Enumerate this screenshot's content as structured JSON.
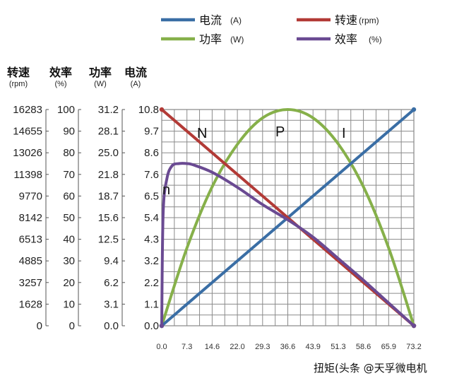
{
  "chart_data": {
    "type": "line",
    "title": "",
    "xlabel": "",
    "x_ticks": [
      "0.0",
      "7.3",
      "14.6",
      "22.0",
      "29.3",
      "36.6",
      "43.9",
      "51.3",
      "58.6",
      "65.9",
      "73.2"
    ],
    "xlim": [
      0,
      73.2
    ],
    "grid": true,
    "legend_position": "top",
    "legend": [
      {
        "name": "电流",
        "unit": "(A)",
        "color": "#3a6ea5"
      },
      {
        "name": "转速",
        "unit": "(rpm)",
        "color": "#b23a36"
      },
      {
        "name": "功率",
        "unit": "(W)",
        "color": "#86b04a"
      },
      {
        "name": "效率",
        "unit": "(%)",
        "color": "#6a4a92"
      }
    ],
    "y_axes": [
      {
        "title": "转速",
        "unit": "(rpm)",
        "ticks": [
          "0",
          "1628",
          "3257",
          "4885",
          "6513",
          "8142",
          "9770",
          "11398",
          "13026",
          "14655",
          "16283"
        ],
        "range": [
          0,
          16283
        ]
      },
      {
        "title": "效率",
        "unit": "(%)",
        "ticks": [
          "0",
          "10",
          "20",
          "30",
          "40",
          "50",
          "60",
          "70",
          "80",
          "90",
          "100"
        ],
        "range": [
          0,
          100
        ]
      },
      {
        "title": "功率",
        "unit": "(W)",
        "ticks": [
          "0.0",
          "3.1",
          "6.2",
          "9.4",
          "12.5",
          "15.6",
          "18.7",
          "21.8",
          "25.0",
          "28.1",
          "31.2"
        ],
        "range": [
          0,
          31.2
        ]
      },
      {
        "title": "电流",
        "unit": "(A)",
        "ticks": [
          "0.0",
          "1.1",
          "2.2",
          "3.2",
          "4.3",
          "5.4",
          "6.5",
          "7.6",
          "8.6",
          "9.7",
          "10.8"
        ],
        "range": [
          0,
          10.8
        ]
      }
    ],
    "series": [
      {
        "name": "电流",
        "label": "I",
        "axis": 3,
        "color": "#3a6ea5",
        "x": [
          0,
          73.2
        ],
        "y": [
          0,
          10.8
        ]
      },
      {
        "name": "转速",
        "label": "N",
        "axis": 0,
        "color": "#b23a36",
        "x": [
          0,
          73.2
        ],
        "y": [
          16283,
          0
        ]
      },
      {
        "name": "功率",
        "label": "P",
        "axis": 2,
        "color": "#86b04a",
        "x": [
          0,
          7.3,
          14.6,
          22.0,
          29.3,
          36.6,
          43.9,
          51.3,
          58.6,
          65.9,
          73.2
        ],
        "y": [
          0,
          11.2,
          20.0,
          26.2,
          30.0,
          31.2,
          30.0,
          26.2,
          20.0,
          11.2,
          0
        ]
      },
      {
        "name": "效率",
        "label": "n",
        "axis": 1,
        "color": "#6a4a92",
        "x": [
          0,
          0.4,
          1.5,
          3.0,
          5.0,
          7.3,
          9.0,
          14.6,
          22.0,
          29.3,
          36.6,
          43.9,
          51.3,
          58.6,
          65.9,
          73.2
        ],
        "y": [
          0,
          52,
          68,
          74,
          75,
          75,
          74.5,
          71,
          64,
          56,
          49,
          41,
          31,
          21,
          10.5,
          0
        ]
      }
    ]
  },
  "watermark": "扭矩(头条 @天孚微电机"
}
